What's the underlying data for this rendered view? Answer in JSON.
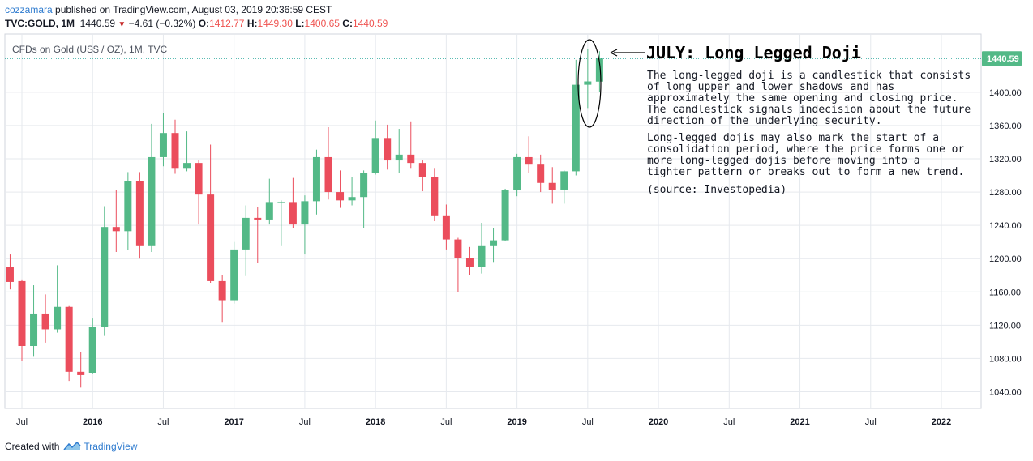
{
  "header": {
    "author": "cozzamara",
    "published_text": "published on TradingView.com, August 03, 2019 20:36:59 CEST",
    "symbol": "TVC:GOLD, 1M",
    "last": "1440.59",
    "change": "−4.61 (−0.32%)",
    "o_label": "O:",
    "o_value": "1412.77",
    "h_label": "H:",
    "h_value": "1449.30",
    "l_label": "L:",
    "l_value": "1400.65",
    "c_label": "C:",
    "c_value": "1440.59"
  },
  "chart_label": "CFDs on Gold (US$ / OZ), 1M, TVC",
  "annotation": {
    "title": "JULY: Long Legged Doji",
    "para1": [
      "The long-legged doji is a candlestick that consists",
      "of long upper and lower shadows and has",
      "approximately the same opening and closing price.",
      "The candlestick signals indecision about the future",
      "direction of the underlying security."
    ],
    "para2": [
      "Long-legged dojis may also mark the start of a",
      "consolidation period, where the price forms one or",
      "more long-legged dojis before moving into a",
      "tighter pattern or breaks out to form a new trend."
    ],
    "source": "(source: Investopedia)"
  },
  "footer": {
    "created_with": "Created with",
    "brand": "TradingView"
  },
  "colors": {
    "up": "#53b987",
    "down": "#eb4d5c",
    "grid": "#e6e9ee",
    "price_line": "#26a69a",
    "price_tag": "#53b987"
  },
  "icons": [
    "arrow-left-icon",
    "tradingview-logo-icon",
    "down-triangle-icon"
  ],
  "chart_data": {
    "type": "candlestick",
    "title": "CFDs on Gold (US$ / OZ), 1M, TVC",
    "ylim": [
      1020,
      1470
    ],
    "y_ticks": [
      1040,
      1080,
      1120,
      1160,
      1200,
      1240,
      1280,
      1320,
      1360,
      1400
    ],
    "x_ticks": [
      {
        "label": "Jul",
        "month": "2015-07"
      },
      {
        "label": "2016",
        "month": "2016-01"
      },
      {
        "label": "Jul",
        "month": "2016-07"
      },
      {
        "label": "2017",
        "month": "2017-01"
      },
      {
        "label": "Jul",
        "month": "2017-07"
      },
      {
        "label": "2018",
        "month": "2018-01"
      },
      {
        "label": "Jul",
        "month": "2018-07"
      },
      {
        "label": "2019",
        "month": "2019-01"
      },
      {
        "label": "Jul",
        "month": "2019-07"
      },
      {
        "label": "2020",
        "month": "2020-01"
      },
      {
        "label": "Jul",
        "month": "2020-07"
      },
      {
        "label": "2021",
        "month": "2021-01"
      },
      {
        "label": "Jul",
        "month": "2021-07"
      },
      {
        "label": "2022",
        "month": "2022-01"
      }
    ],
    "last_price": 1440.59,
    "last_price_label": "1440.59",
    "grid": true,
    "candles": [
      {
        "m": "2015-06",
        "o": 1190,
        "h": 1205,
        "l": 1163,
        "c": 1172
      },
      {
        "m": "2015-07",
        "o": 1173,
        "h": 1175,
        "l": 1077,
        "c": 1095
      },
      {
        "m": "2015-08",
        "o": 1095,
        "h": 1168,
        "l": 1082,
        "c": 1134
      },
      {
        "m": "2015-09",
        "o": 1134,
        "h": 1157,
        "l": 1099,
        "c": 1115
      },
      {
        "m": "2015-10",
        "o": 1115,
        "h": 1192,
        "l": 1111,
        "c": 1142
      },
      {
        "m": "2015-11",
        "o": 1142,
        "h": 1143,
        "l": 1053,
        "c": 1064
      },
      {
        "m": "2015-12",
        "o": 1064,
        "h": 1088,
        "l": 1045,
        "c": 1060
      },
      {
        "m": "2016-01",
        "o": 1062,
        "h": 1128,
        "l": 1061,
        "c": 1118
      },
      {
        "m": "2016-02",
        "o": 1118,
        "h": 1263,
        "l": 1107,
        "c": 1238
      },
      {
        "m": "2016-03",
        "o": 1238,
        "h": 1283,
        "l": 1208,
        "c": 1233
      },
      {
        "m": "2016-04",
        "o": 1233,
        "h": 1304,
        "l": 1210,
        "c": 1293
      },
      {
        "m": "2016-05",
        "o": 1293,
        "h": 1304,
        "l": 1200,
        "c": 1215
      },
      {
        "m": "2016-06",
        "o": 1215,
        "h": 1362,
        "l": 1208,
        "c": 1322
      },
      {
        "m": "2016-07",
        "o": 1322,
        "h": 1375,
        "l": 1311,
        "c": 1351
      },
      {
        "m": "2016-08",
        "o": 1351,
        "h": 1367,
        "l": 1302,
        "c": 1309
      },
      {
        "m": "2016-09",
        "o": 1309,
        "h": 1353,
        "l": 1305,
        "c": 1315
      },
      {
        "m": "2016-10",
        "o": 1315,
        "h": 1318,
        "l": 1241,
        "c": 1277
      },
      {
        "m": "2016-11",
        "o": 1277,
        "h": 1337,
        "l": 1171,
        "c": 1173
      },
      {
        "m": "2016-12",
        "o": 1173,
        "h": 1180,
        "l": 1123,
        "c": 1150
      },
      {
        "m": "2017-01",
        "o": 1150,
        "h": 1220,
        "l": 1146,
        "c": 1211
      },
      {
        "m": "2017-02",
        "o": 1211,
        "h": 1264,
        "l": 1179,
        "c": 1249
      },
      {
        "m": "2017-03",
        "o": 1249,
        "h": 1262,
        "l": 1195,
        "c": 1247
      },
      {
        "m": "2017-04",
        "o": 1247,
        "h": 1296,
        "l": 1241,
        "c": 1268
      },
      {
        "m": "2017-05",
        "o": 1268,
        "h": 1270,
        "l": 1215,
        "c": 1268
      },
      {
        "m": "2017-06",
        "o": 1268,
        "h": 1297,
        "l": 1237,
        "c": 1241
      },
      {
        "m": "2017-07",
        "o": 1241,
        "h": 1276,
        "l": 1205,
        "c": 1269
      },
      {
        "m": "2017-08",
        "o": 1269,
        "h": 1331,
        "l": 1253,
        "c": 1322
      },
      {
        "m": "2017-09",
        "o": 1322,
        "h": 1358,
        "l": 1271,
        "c": 1280
      },
      {
        "m": "2017-10",
        "o": 1280,
        "h": 1306,
        "l": 1261,
        "c": 1270
      },
      {
        "m": "2017-11",
        "o": 1270,
        "h": 1298,
        "l": 1264,
        "c": 1274
      },
      {
        "m": "2017-12",
        "o": 1274,
        "h": 1306,
        "l": 1237,
        "c": 1303
      },
      {
        "m": "2018-01",
        "o": 1303,
        "h": 1366,
        "l": 1301,
        "c": 1345
      },
      {
        "m": "2018-02",
        "o": 1345,
        "h": 1361,
        "l": 1307,
        "c": 1318
      },
      {
        "m": "2018-03",
        "o": 1318,
        "h": 1356,
        "l": 1303,
        "c": 1325
      },
      {
        "m": "2018-04",
        "o": 1325,
        "h": 1365,
        "l": 1309,
        "c": 1315
      },
      {
        "m": "2018-05",
        "o": 1315,
        "h": 1318,
        "l": 1281,
        "c": 1298
      },
      {
        "m": "2018-06",
        "o": 1298,
        "h": 1309,
        "l": 1245,
        "c": 1252
      },
      {
        "m": "2018-07",
        "o": 1252,
        "h": 1265,
        "l": 1211,
        "c": 1223
      },
      {
        "m": "2018-08",
        "o": 1223,
        "h": 1225,
        "l": 1160,
        "c": 1201
      },
      {
        "m": "2018-09",
        "o": 1201,
        "h": 1214,
        "l": 1180,
        "c": 1190
      },
      {
        "m": "2018-10",
        "o": 1190,
        "h": 1243,
        "l": 1182,
        "c": 1215
      },
      {
        "m": "2018-11",
        "o": 1215,
        "h": 1237,
        "l": 1196,
        "c": 1222
      },
      {
        "m": "2018-12",
        "o": 1222,
        "h": 1284,
        "l": 1221,
        "c": 1282
      },
      {
        "m": "2019-01",
        "o": 1282,
        "h": 1326,
        "l": 1275,
        "c": 1322
      },
      {
        "m": "2019-02",
        "o": 1322,
        "h": 1347,
        "l": 1303,
        "c": 1313
      },
      {
        "m": "2019-03",
        "o": 1313,
        "h": 1325,
        "l": 1280,
        "c": 1291
      },
      {
        "m": "2019-04",
        "o": 1291,
        "h": 1310,
        "l": 1266,
        "c": 1283
      },
      {
        "m": "2019-05",
        "o": 1283,
        "h": 1306,
        "l": 1266,
        "c": 1305
      },
      {
        "m": "2019-06",
        "o": 1305,
        "h": 1439,
        "l": 1300,
        "c": 1409
      },
      {
        "m": "2019-07",
        "o": 1409,
        "h": 1452,
        "l": 1381,
        "c": 1413
      },
      {
        "m": "2019-08",
        "o": 1412.77,
        "h": 1449.3,
        "l": 1400.65,
        "c": 1440.59
      }
    ]
  }
}
